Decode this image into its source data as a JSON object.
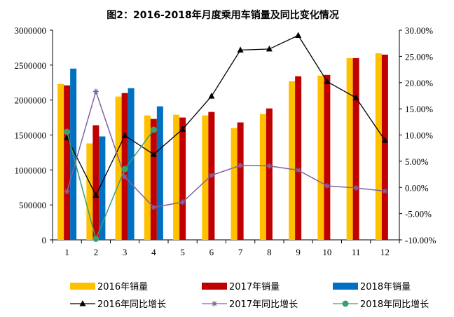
{
  "chart_data": {
    "type": "bar",
    "title": "图2：2016-2018年月度乘用车销量及同比变化情况",
    "categories": [
      "1",
      "2",
      "3",
      "4",
      "5",
      "6",
      "7",
      "8",
      "9",
      "10",
      "11",
      "12"
    ],
    "ylim": [
      0,
      3000000
    ],
    "y_ticks": [
      "0",
      "500000",
      "1000000",
      "1500000",
      "2000000",
      "2500000",
      "3000000"
    ],
    "y2lim": [
      -0.1,
      0.3
    ],
    "y2_ticks": [
      "-10.00%",
      "-5.00%",
      "0.00%",
      "5.00%",
      "10.00%",
      "15.00%",
      "20.00%",
      "25.00%",
      "30.00%"
    ],
    "grid": false,
    "legend_position": "bottom",
    "series": [
      {
        "name": "2016年销量",
        "type": "bar",
        "color": "#FFC000",
        "values": [
          2230000,
          1380000,
          2050000,
          1780000,
          1790000,
          1780000,
          1600000,
          1800000,
          2270000,
          2350000,
          2600000,
          2670000
        ]
      },
      {
        "name": "2017年销量",
        "type": "bar",
        "color": "#C00000",
        "values": [
          2210000,
          1640000,
          2100000,
          1730000,
          1750000,
          1830000,
          1680000,
          1880000,
          2340000,
          2360000,
          2600000,
          2650000
        ]
      },
      {
        "name": "2018年销量",
        "type": "bar",
        "color": "#0070C0",
        "values": [
          2450000,
          1480000,
          2170000,
          1910000,
          null,
          null,
          null,
          null,
          null,
          null,
          null,
          null
        ]
      },
      {
        "name": "2016年同比增长",
        "type": "line",
        "axis": "right",
        "color": "#000000",
        "marker": "triangle",
        "values": [
          0.095,
          -0.015,
          0.099,
          0.063,
          0.111,
          0.174,
          0.262,
          0.264,
          0.29,
          0.202,
          0.171,
          0.09
        ]
      },
      {
        "name": "2017年同比增长",
        "type": "line",
        "axis": "right",
        "color": "#8064A2",
        "marker": "star",
        "values": [
          -0.008,
          0.183,
          0.02,
          -0.038,
          -0.028,
          0.023,
          0.042,
          0.041,
          0.033,
          0.003,
          -0.001,
          -0.007
        ]
      },
      {
        "name": "2018年同比增长",
        "type": "line",
        "axis": "right",
        "color": "#3CA06E",
        "marker": "circle",
        "values": [
          0.106,
          -0.098,
          0.035,
          0.11,
          null,
          null,
          null,
          null,
          null,
          null,
          null,
          null
        ]
      }
    ]
  }
}
